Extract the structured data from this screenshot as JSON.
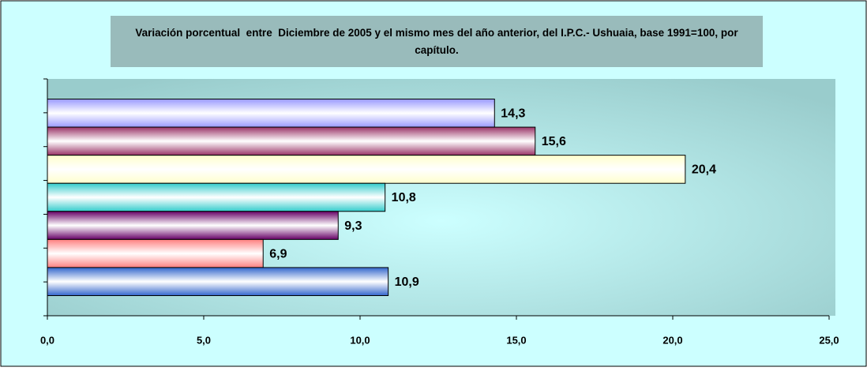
{
  "chart_data": {
    "type": "barh",
    "title": "Variación porcentual  entre  Diciembre de 2005 y el mismo mes del año anterior, del I.P.C.- Ushuaia, base 1991=100, por capítulo.",
    "values": [
      14.3,
      15.6,
      20.4,
      10.8,
      9.3,
      6.9,
      10.9
    ],
    "value_labels": [
      "14,3",
      "15,6",
      "20,4",
      "10,8",
      "9,3",
      "6,9",
      "10,9"
    ],
    "colors": [
      "#9999ff",
      "#993366",
      "#ffffcc",
      "#33cccc",
      "#660066",
      "#ff8080",
      "#3366cc"
    ],
    "xlim": [
      0,
      25
    ],
    "xticks": [
      {
        "value": 0,
        "label": "0,0"
      },
      {
        "value": 5,
        "label": "5,0"
      },
      {
        "value": 10,
        "label": "10,0"
      },
      {
        "value": 15,
        "label": "15,0"
      },
      {
        "value": 20,
        "label": "20,0"
      },
      {
        "value": 25,
        "label": "25,0"
      }
    ]
  }
}
